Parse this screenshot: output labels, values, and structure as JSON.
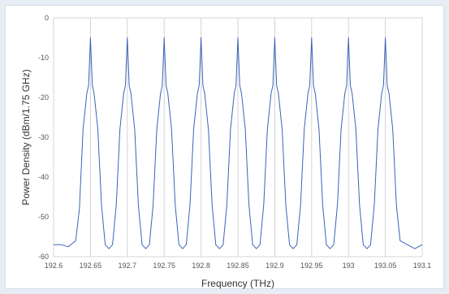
{
  "chart_data": {
    "type": "line",
    "title": "",
    "xlabel": "Frequency (THz)",
    "ylabel": "Power Density (dBm/1.75 GHz)",
    "xlim": [
      192.6,
      193.1
    ],
    "ylim": [
      -60,
      0
    ],
    "x_ticks": [
      "192.6",
      "192.65",
      "192.7",
      "192.75",
      "192.8",
      "192.85",
      "192.9",
      "192.95",
      "193",
      "193.05",
      "193.1"
    ],
    "y_ticks": [
      "0",
      "-10",
      "-20",
      "-30",
      "-40",
      "-50",
      "-60"
    ],
    "grid": "vertical",
    "legend": "none",
    "line_color": "#3b63b8",
    "series": [
      {
        "x": [
          192.6,
          192.61,
          192.62,
          192.63,
          192.635,
          192.64,
          192.645,
          192.6475,
          192.65,
          192.6525,
          192.655,
          192.66,
          192.665,
          192.67,
          192.675,
          192.68,
          192.685,
          192.69,
          192.695,
          192.6975,
          192.7,
          192.7025,
          192.705,
          192.71,
          192.715,
          192.72,
          192.725,
          192.73,
          192.735,
          192.74,
          192.745,
          192.7475,
          192.75,
          192.7525,
          192.755,
          192.76,
          192.765,
          192.77,
          192.775,
          192.78,
          192.785,
          192.79,
          192.795,
          192.7975,
          192.8,
          192.8025,
          192.805,
          192.81,
          192.815,
          192.82,
          192.825,
          192.83,
          192.835,
          192.84,
          192.845,
          192.8475,
          192.85,
          192.8525,
          192.855,
          192.86,
          192.865,
          192.87,
          192.875,
          192.88,
          192.885,
          192.89,
          192.895,
          192.8975,
          192.9,
          192.9025,
          192.905,
          192.91,
          192.915,
          192.92,
          192.925,
          192.93,
          192.935,
          192.94,
          192.945,
          192.9475,
          192.95,
          192.9525,
          192.955,
          192.96,
          192.965,
          192.97,
          192.975,
          192.98,
          192.985,
          192.99,
          192.995,
          192.9975,
          193.0,
          193.0025,
          193.005,
          193.01,
          193.015,
          193.02,
          193.025,
          193.03,
          193.035,
          193.04,
          193.045,
          193.0475,
          193.05,
          193.0525,
          193.055,
          193.06,
          193.065,
          193.07,
          193.08,
          193.09,
          193.1
        ],
        "y": [
          -57,
          -57,
          -57.5,
          -56,
          -48,
          -28,
          -19,
          -17,
          -5,
          -17,
          -19,
          -28,
          -47,
          -57,
          -58,
          -57,
          -47,
          -28,
          -19,
          -17,
          -5,
          -17,
          -19,
          -28,
          -47,
          -57,
          -58,
          -57,
          -47,
          -28,
          -19,
          -17,
          -5,
          -17,
          -19,
          -28,
          -47,
          -57,
          -58,
          -57,
          -47,
          -28,
          -19,
          -17,
          -5,
          -17,
          -19,
          -28,
          -47,
          -57,
          -58,
          -57,
          -47,
          -28,
          -19,
          -17,
          -5,
          -17,
          -19,
          -28,
          -47,
          -57,
          -58,
          -57,
          -47,
          -28,
          -19,
          -17,
          -5,
          -17,
          -19,
          -28,
          -47,
          -57,
          -58,
          -57,
          -47,
          -28,
          -19,
          -17,
          -5,
          -17,
          -19,
          -28,
          -47,
          -57,
          -58,
          -57,
          -47,
          -28,
          -19,
          -17,
          -5,
          -17,
          -19,
          -28,
          -47,
          -57,
          -58,
          -57,
          -47,
          -28,
          -19,
          -17,
          -5,
          -17,
          -19,
          -28,
          -47,
          -56,
          -57,
          -58,
          -57
        ]
      }
    ]
  }
}
